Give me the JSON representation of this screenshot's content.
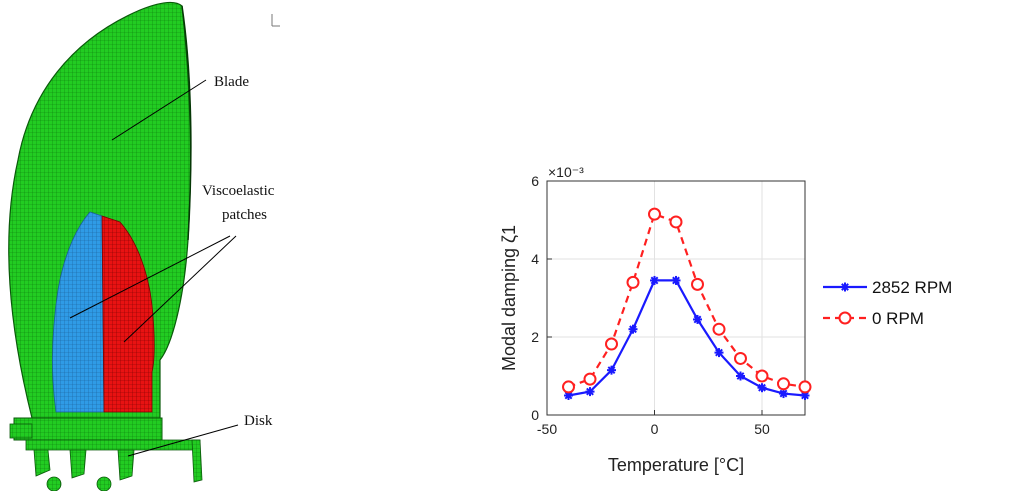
{
  "figure": {
    "labels": {
      "blade": "Blade",
      "viscoelastic_line1": "Viscoelastic",
      "viscoelastic_line2": "patches",
      "disk": "Disk"
    }
  },
  "chart_data": {
    "type": "line",
    "xlabel": "Temperature [°C]",
    "ylabel": "Modal damping ζ1",
    "y_multiplier": "×10⁻³",
    "xlim": [
      -50,
      70
    ],
    "ylim": [
      0,
      6
    ],
    "x_ticks": [
      -50,
      0,
      50
    ],
    "y_ticks": [
      0,
      2,
      4,
      6
    ],
    "grid": true,
    "legend_position": "right",
    "x": [
      -40,
      -30,
      -20,
      -10,
      0,
      10,
      20,
      30,
      40,
      50,
      60,
      70
    ],
    "series": [
      {
        "name": "2852 RPM",
        "color": "#1a1aff",
        "line_style": "solid",
        "marker": "asterisk",
        "values": [
          0.5,
          0.6,
          1.15,
          2.2,
          3.45,
          3.45,
          2.45,
          1.6,
          1.0,
          0.7,
          0.55,
          0.5
        ]
      },
      {
        "name": "0 RPM",
        "color": "#ff2020",
        "line_style": "dashed",
        "marker": "circle",
        "values": [
          0.72,
          0.92,
          1.82,
          3.4,
          5.15,
          4.95,
          3.35,
          2.2,
          1.45,
          1.0,
          0.8,
          0.72
        ]
      }
    ]
  }
}
